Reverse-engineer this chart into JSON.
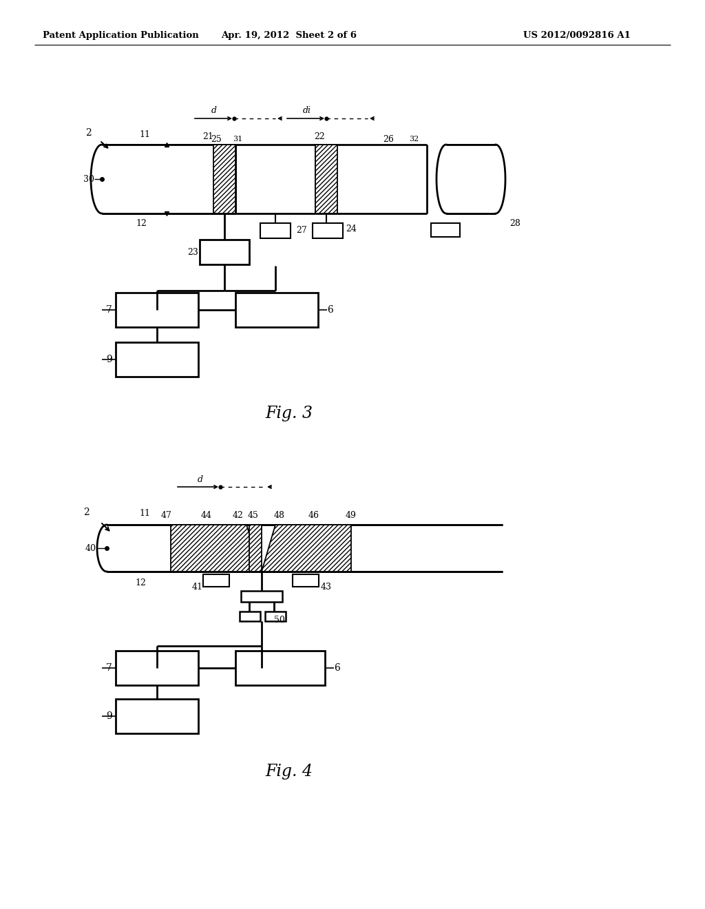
{
  "bg_color": "#ffffff",
  "header_left": "Patent Application Publication",
  "header_center": "Apr. 19, 2012  Sheet 2 of 6",
  "header_right": "US 2012/0092816 A1",
  "fig3_label": "Fig. 3",
  "fig4_label": "Fig. 4"
}
